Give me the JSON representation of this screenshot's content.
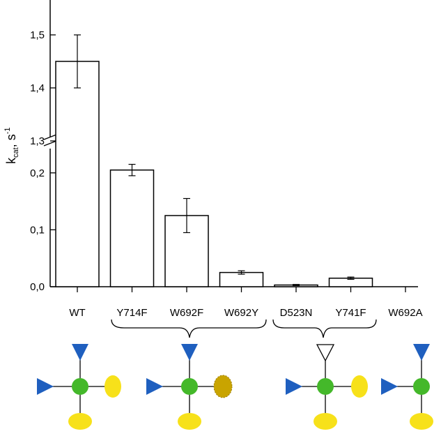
{
  "chart_data": {
    "type": "bar",
    "ylabel": "k_cat, s⁻¹",
    "ylabel_main": "k",
    "ylabel_sub": "cat",
    "ylabel_unit": "s",
    "ylabel_sup": "-1",
    "axis_break": true,
    "ylim_lower": [
      0.0,
      0.25
    ],
    "ylim_upper": [
      1.3,
      1.55
    ],
    "yticks_lower": [
      "0,0",
      "0,1",
      "0,2"
    ],
    "yticks_upper": [
      "1,3",
      "1,4",
      "1,5"
    ],
    "categories": [
      "WT",
      "Y714F",
      "W692F",
      "W692Y",
      "D523N",
      "Y741F",
      "W692A"
    ],
    "values": [
      1.45,
      0.205,
      0.125,
      0.025,
      0.003,
      0.015,
      0.0
    ],
    "errors": [
      0.05,
      0.01,
      0.03,
      0.003,
      0.001,
      0.002,
      0.0
    ],
    "grid": false,
    "colors": {
      "background": "#ffffff",
      "bar_fill": "#ffffff",
      "bar_stroke": "#000000",
      "glycan_blue": "#1f5fbf",
      "glycan_green": "#44b82a",
      "glycan_yellow": "#f7e11a",
      "glycan_yellow_stippled": "#c9a400"
    }
  }
}
